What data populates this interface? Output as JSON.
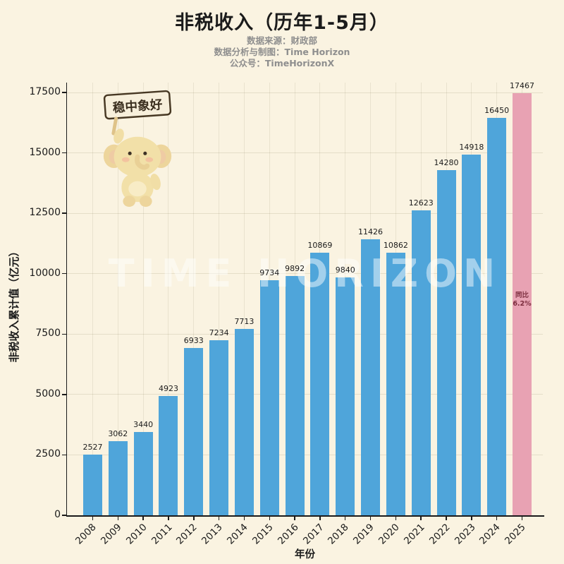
{
  "header": {
    "title": "非税收入（历年1-5月）",
    "source_line": "数据来源：财政部",
    "credit_line": "数据分析与制图：Time Horizon",
    "account_line": "公众号：TimeHorizonX"
  },
  "mascot": {
    "sign_text": "稳中象好"
  },
  "watermark": "TIME HORIZON",
  "colors": {
    "background": "#FAF3E1",
    "bar": "#4FA5DA",
    "highlight_bar": "#E8A2B3",
    "annotation_text": "#7C2D3E"
  },
  "chart_data": {
    "type": "bar",
    "title": "非税收入（历年1-5月）",
    "xlabel": "年份",
    "ylabel": "非税收入累计值（亿元）",
    "categories": [
      "2008",
      "2009",
      "2010",
      "2011",
      "2012",
      "2013",
      "2014",
      "2015",
      "2016",
      "2017",
      "2018",
      "2019",
      "2020",
      "2021",
      "2022",
      "2023",
      "2024",
      "2025"
    ],
    "values": [
      2527,
      3062,
      3440,
      4923,
      6933,
      7234,
      7713,
      9734,
      9892,
      10869,
      9840,
      11426,
      10862,
      12623,
      14280,
      14918,
      16450,
      17467
    ],
    "ylim": [
      0,
      17500
    ],
    "yticks": [
      0,
      2500,
      5000,
      7500,
      10000,
      12500,
      15000,
      17500
    ],
    "grid": true,
    "legend": false,
    "bar_color": "#4FA5DA",
    "highlight": {
      "index": 17,
      "color": "#E8A2B3",
      "annotation_lines": [
        "同比",
        "6.2%"
      ]
    }
  }
}
